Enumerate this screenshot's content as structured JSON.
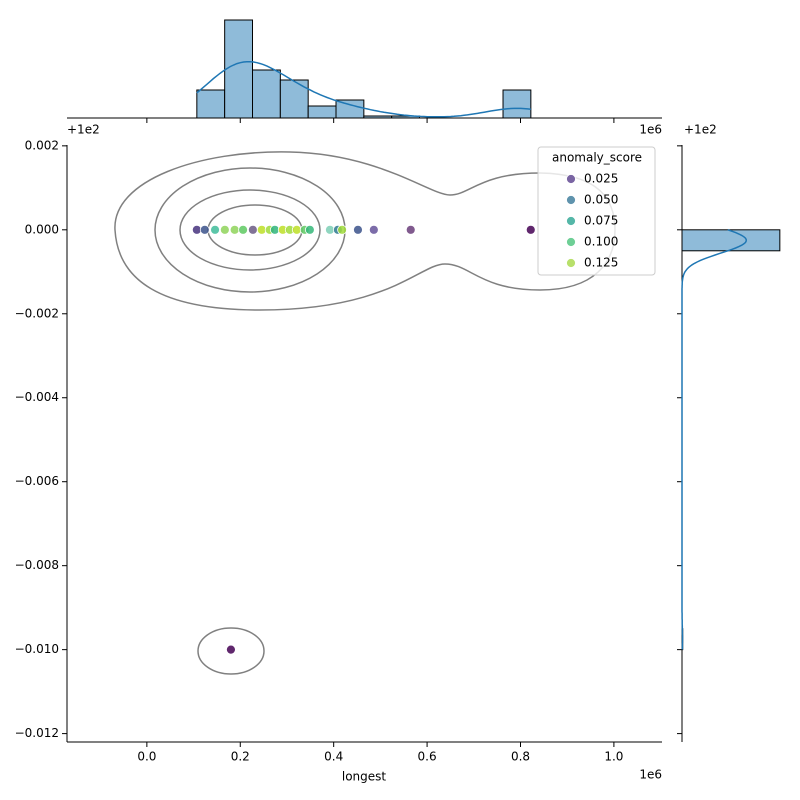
{
  "chart_data": {
    "type": "scatter",
    "xlabel": "longest",
    "x_offset_text": "1e6",
    "y_offset_text": "+1e2",
    "top_offset_text": "1e6",
    "right_offset_text": "+1e2",
    "xlim": [
      -0.171,
      1.103
    ],
    "ylim": [
      -0.0122,
      0.00202
    ],
    "xticks": [
      {
        "value": 0,
        "label": "0.0"
      },
      0.2,
      0.4,
      0.6,
      0.8,
      {
        "value": 1,
        "label": "1.0"
      }
    ],
    "yticks": [
      0.002,
      {
        "value": 0,
        "label": "0.000"
      },
      {
        "value": -0.002,
        "label": "−0.002"
      },
      {
        "value": -0.004,
        "label": "−0.004"
      },
      {
        "value": -0.006,
        "label": "−0.006"
      },
      {
        "value": -0.008,
        "label": "−0.008"
      },
      {
        "value": -0.01,
        "label": "−0.010"
      },
      {
        "value": -0.012,
        "label": "−0.012"
      }
    ],
    "legend": {
      "title": "anomaly_score",
      "corner": "upper right",
      "entries": [
        {
          "value": 0.025,
          "label": "0.025",
          "color": "#7a65a3"
        },
        {
          "value": 0.05,
          "label": "0.050",
          "color": "#5f93ad"
        },
        {
          "value": 0.075,
          "label": "0.075",
          "color": "#55b7a8"
        },
        {
          "value": 0.1,
          "label": "0.100",
          "color": "#6ecf96"
        },
        {
          "value": 0.125,
          "label": "0.125",
          "color": "#b8e06b"
        }
      ]
    },
    "series": [
      {
        "x": [
          0.107,
          0.124,
          0.146,
          0.167,
          0.188,
          0.206,
          0.227,
          0.246,
          0.263,
          0.274,
          0.291,
          0.306,
          0.321,
          0.338,
          0.349,
          0.392,
          0.409,
          0.418,
          0.452,
          0.486,
          0.565,
          0.822,
          0.18
        ],
        "y": [
          0,
          0,
          0,
          0,
          0,
          0,
          0,
          0,
          0,
          0,
          0,
          0,
          0,
          0,
          0,
          0,
          0,
          0,
          0,
          0,
          0,
          0,
          -0.01
        ],
        "colors": [
          "#46327e",
          "#3b528b",
          "#3fbc9a",
          "#8fd35a",
          "#8fd35a",
          "#5ec962",
          "#6b5a84",
          "#bddf26",
          "#a0da39",
          "#2fb47c",
          "#bddf26",
          "#a0da39",
          "#bddf26",
          "#5ec962",
          "#35b779",
          "#7ccfb5",
          "#2a788e",
          "#a0da39",
          "#3b528b",
          "#65529a",
          "#6a3d7a",
          "#440154",
          "#440154"
        ]
      }
    ],
    "top_histogram": {
      "bins": [
        0.107,
        0.1666,
        0.2262,
        0.2858,
        0.3454,
        0.405,
        0.4646,
        0.5242,
        0.5838,
        0.6434,
        0.703,
        0.7626,
        0.8222
      ],
      "counts": [
        14,
        49,
        24,
        19,
        6,
        9,
        1,
        1,
        0,
        0,
        0,
        14
      ],
      "ylim": [
        0,
        50
      ],
      "color": "#8fbbd9",
      "kde_color": "#1f77b4"
    },
    "right_histogram": {
      "bins": [
        -0.01,
        -0.0095,
        -0.009,
        -0.0085,
        -0.008,
        -0.0075,
        -0.007,
        -0.0065,
        -0.006,
        -0.0055,
        -0.005,
        -0.0045,
        -0.004,
        -0.0035,
        -0.003,
        -0.0025,
        -0.002,
        -0.0015,
        -0.001,
        -0.0005,
        0
      ],
      "counts": [
        1,
        0,
        0,
        0,
        0,
        0,
        0,
        0,
        0,
        0,
        0,
        0,
        0,
        0,
        0,
        0,
        0,
        0,
        0,
        136
      ],
      "xlim": [
        0,
        139
      ],
      "color": "#8fbbd9",
      "kde_color": "#1f77b4"
    }
  }
}
